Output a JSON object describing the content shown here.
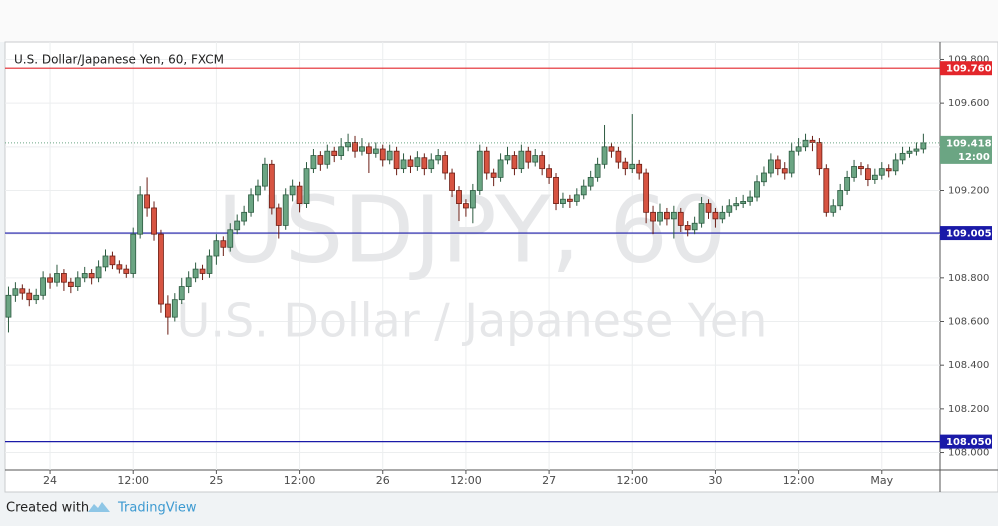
{
  "chart_data": {
    "type": "candlestick",
    "title": "U.S. Dollar/Japanese Yen, 60, FXCM",
    "watermark": [
      "USDJPY, 60",
      "U.S. Dollar / Japanese Yen"
    ],
    "up_color": "#6ba583",
    "down_color": "#d75442",
    "xlim": [
      -0.5,
      134.4
    ],
    "xticks": [
      {
        "value": 6,
        "label": "24"
      },
      {
        "value": 18,
        "label": "12:00"
      },
      {
        "value": 30,
        "label": "25"
      },
      {
        "value": 42,
        "label": "12:00"
      },
      {
        "value": 54,
        "label": "26"
      },
      {
        "value": 66,
        "label": "12:00"
      },
      {
        "value": 78,
        "label": "27"
      },
      {
        "value": 90,
        "label": "12:00"
      },
      {
        "value": 102,
        "label": "30"
      },
      {
        "value": 114,
        "label": "12:00"
      },
      {
        "value": 126,
        "label": "May"
      }
    ],
    "ylim": [
      107.92,
      109.88
    ],
    "yticks": [
      {
        "value": 108,
        "label": "108.000"
      },
      {
        "value": 108.2,
        "label": "108.200"
      },
      {
        "value": 108.4,
        "label": "108.400"
      },
      {
        "value": 108.6,
        "label": "108.600"
      },
      {
        "value": 108.8,
        "label": "108.800"
      },
      {
        "value": 109,
        "label": "109.000"
      },
      {
        "value": 109.2,
        "label": "109.200"
      },
      {
        "value": 109.4,
        "label": "109.400"
      },
      {
        "value": 109.6,
        "label": "109.600"
      },
      {
        "value": 109.8,
        "label": "109.800"
      }
    ],
    "grid": true,
    "levels": [
      {
        "value": 109.76,
        "label": "109.760",
        "color": "#e3262b"
      },
      {
        "value": 109.005,
        "label": "109.005",
        "color": "#1a1aa8"
      },
      {
        "value": 108.05,
        "label": "108.050",
        "color": "#1a1aa8"
      }
    ],
    "price_label_time": "12:00",
    "candles": [
      [
        108.62,
        108.76,
        108.55,
        108.72
      ],
      [
        108.72,
        108.78,
        108.69,
        108.75
      ],
      [
        108.75,
        108.77,
        108.7,
        108.73
      ],
      [
        108.73,
        108.75,
        108.67,
        108.7
      ],
      [
        108.7,
        108.75,
        108.68,
        108.72
      ],
      [
        108.72,
        108.83,
        108.7,
        108.8
      ],
      [
        108.8,
        108.82,
        108.75,
        108.78
      ],
      [
        108.78,
        108.86,
        108.76,
        108.82
      ],
      [
        108.82,
        108.84,
        108.74,
        108.78
      ],
      [
        108.78,
        108.8,
        108.73,
        108.76
      ],
      [
        108.76,
        108.83,
        108.74,
        108.8
      ],
      [
        108.8,
        108.85,
        108.78,
        108.82
      ],
      [
        108.82,
        108.84,
        108.77,
        108.8
      ],
      [
        108.8,
        108.88,
        108.78,
        108.85
      ],
      [
        108.85,
        108.93,
        108.83,
        108.9
      ],
      [
        108.9,
        108.92,
        108.84,
        108.86
      ],
      [
        108.86,
        108.88,
        108.82,
        108.84
      ],
      [
        108.84,
        108.86,
        108.8,
        108.82
      ],
      [
        108.82,
        109.03,
        108.8,
        109.0
      ],
      [
        109.0,
        109.22,
        108.98,
        109.18
      ],
      [
        109.18,
        109.26,
        109.08,
        109.12
      ],
      [
        109.12,
        109.15,
        108.97,
        109.0
      ],
      [
        109.0,
        109.02,
        108.64,
        108.68
      ],
      [
        108.68,
        108.72,
        108.54,
        108.62
      ],
      [
        108.62,
        108.73,
        108.6,
        108.7
      ],
      [
        108.7,
        108.8,
        108.68,
        108.76
      ],
      [
        108.76,
        108.83,
        108.73,
        108.8
      ],
      [
        108.8,
        108.87,
        108.78,
        108.84
      ],
      [
        108.84,
        108.86,
        108.79,
        108.82
      ],
      [
        108.82,
        108.93,
        108.8,
        108.9
      ],
      [
        108.9,
        109.0,
        108.86,
        108.97
      ],
      [
        108.97,
        108.99,
        108.9,
        108.94
      ],
      [
        108.94,
        109.05,
        108.92,
        109.02
      ],
      [
        109.02,
        109.09,
        109.0,
        109.06
      ],
      [
        109.06,
        109.13,
        109.04,
        109.1
      ],
      [
        109.1,
        109.21,
        109.08,
        109.18
      ],
      [
        109.18,
        109.25,
        109.15,
        109.22
      ],
      [
        109.22,
        109.35,
        109.2,
        109.32
      ],
      [
        109.32,
        109.34,
        109.09,
        109.12
      ],
      [
        109.12,
        109.14,
        108.98,
        109.04
      ],
      [
        109.04,
        109.21,
        109.02,
        109.18
      ],
      [
        109.18,
        109.25,
        109.15,
        109.22
      ],
      [
        109.22,
        109.24,
        109.1,
        109.14
      ],
      [
        109.14,
        109.33,
        109.12,
        109.3
      ],
      [
        109.3,
        109.39,
        109.28,
        109.36
      ],
      [
        109.36,
        109.38,
        109.29,
        109.32
      ],
      [
        109.32,
        109.41,
        109.3,
        109.38
      ],
      [
        109.38,
        109.4,
        109.33,
        109.36
      ],
      [
        109.36,
        109.44,
        109.34,
        109.4
      ],
      [
        109.4,
        109.46,
        109.38,
        109.42
      ],
      [
        109.42,
        109.45,
        109.35,
        109.38
      ],
      [
        109.38,
        109.44,
        109.36,
        109.4
      ],
      [
        109.4,
        109.42,
        109.28,
        109.37
      ],
      [
        109.37,
        109.42,
        109.35,
        109.39
      ],
      [
        109.39,
        109.41,
        109.31,
        109.34
      ],
      [
        109.34,
        109.41,
        109.32,
        109.38
      ],
      [
        109.38,
        109.4,
        109.27,
        109.3
      ],
      [
        109.3,
        109.37,
        109.28,
        109.34
      ],
      [
        109.34,
        109.36,
        109.28,
        109.31
      ],
      [
        109.31,
        109.38,
        109.29,
        109.35
      ],
      [
        109.35,
        109.37,
        109.27,
        109.3
      ],
      [
        109.3,
        109.37,
        109.28,
        109.34
      ],
      [
        109.34,
        109.39,
        109.32,
        109.36
      ],
      [
        109.36,
        109.38,
        109.25,
        109.28
      ],
      [
        109.28,
        109.3,
        109.17,
        109.2
      ],
      [
        109.2,
        109.22,
        109.06,
        109.14
      ],
      [
        109.14,
        109.16,
        109.08,
        109.12
      ],
      [
        109.12,
        109.23,
        109.05,
        109.2
      ],
      [
        109.2,
        109.41,
        109.18,
        109.38
      ],
      [
        109.38,
        109.4,
        109.25,
        109.28
      ],
      [
        109.28,
        109.3,
        109.22,
        109.26
      ],
      [
        109.26,
        109.37,
        109.24,
        109.34
      ],
      [
        109.34,
        109.4,
        109.32,
        109.36
      ],
      [
        109.36,
        109.38,
        109.27,
        109.3
      ],
      [
        109.3,
        109.41,
        109.28,
        109.38
      ],
      [
        109.38,
        109.4,
        109.3,
        109.33
      ],
      [
        109.33,
        109.39,
        109.31,
        109.36
      ],
      [
        109.36,
        109.38,
        109.27,
        109.3
      ],
      [
        109.3,
        109.32,
        109.23,
        109.26
      ],
      [
        109.26,
        109.28,
        109.11,
        109.14
      ],
      [
        109.14,
        109.19,
        109.12,
        109.16
      ],
      [
        109.16,
        109.18,
        109.12,
        109.15
      ],
      [
        109.15,
        109.21,
        109.13,
        109.18
      ],
      [
        109.18,
        109.25,
        109.16,
        109.22
      ],
      [
        109.22,
        109.29,
        109.2,
        109.26
      ],
      [
        109.26,
        109.35,
        109.24,
        109.32
      ],
      [
        109.32,
        109.5,
        109.3,
        109.4
      ],
      [
        109.4,
        109.42,
        109.35,
        109.38
      ],
      [
        109.38,
        109.4,
        109.3,
        109.33
      ],
      [
        109.33,
        109.35,
        109.27,
        109.3
      ],
      [
        109.3,
        109.55,
        109.28,
        109.32
      ],
      [
        109.32,
        109.34,
        109.25,
        109.28
      ],
      [
        109.28,
        109.3,
        109.05,
        109.1
      ],
      [
        109.1,
        109.13,
        109.0,
        109.06
      ],
      [
        109.06,
        109.14,
        109.04,
        109.1
      ],
      [
        109.1,
        109.12,
        109.04,
        109.07
      ],
      [
        109.07,
        109.13,
        108.98,
        109.1
      ],
      [
        109.1,
        109.12,
        109.01,
        109.04
      ],
      [
        109.04,
        109.06,
        108.99,
        109.02
      ],
      [
        109.02,
        109.08,
        109.0,
        109.05
      ],
      [
        109.05,
        109.17,
        109.03,
        109.14
      ],
      [
        109.14,
        109.16,
        109.07,
        109.1
      ],
      [
        109.1,
        109.12,
        109.03,
        109.07
      ],
      [
        109.07,
        109.13,
        109.05,
        109.1
      ],
      [
        109.1,
        109.16,
        109.08,
        109.13
      ],
      [
        109.13,
        109.17,
        109.11,
        109.14
      ],
      [
        109.14,
        109.18,
        109.12,
        109.15
      ],
      [
        109.15,
        109.2,
        109.13,
        109.17
      ],
      [
        109.17,
        109.27,
        109.15,
        109.24
      ],
      [
        109.24,
        109.31,
        109.22,
        109.28
      ],
      [
        109.28,
        109.37,
        109.26,
        109.34
      ],
      [
        109.34,
        109.36,
        109.27,
        109.3
      ],
      [
        109.3,
        109.33,
        109.25,
        109.28
      ],
      [
        109.28,
        109.42,
        109.26,
        109.38
      ],
      [
        109.38,
        109.44,
        109.36,
        109.4
      ],
      [
        109.4,
        109.46,
        109.38,
        109.43
      ],
      [
        109.43,
        109.45,
        109.38,
        109.42
      ],
      [
        109.42,
        109.44,
        109.27,
        109.3
      ],
      [
        109.3,
        109.32,
        109.08,
        109.1
      ],
      [
        109.1,
        109.16,
        109.08,
        109.13
      ],
      [
        109.13,
        109.23,
        109.11,
        109.2
      ],
      [
        109.2,
        109.29,
        109.18,
        109.26
      ],
      [
        109.26,
        109.34,
        109.24,
        109.31
      ],
      [
        109.31,
        109.33,
        109.27,
        109.3
      ],
      [
        109.3,
        109.32,
        109.22,
        109.25
      ],
      [
        109.25,
        109.3,
        109.23,
        109.27
      ],
      [
        109.27,
        109.33,
        109.25,
        109.3
      ],
      [
        109.3,
        109.32,
        109.26,
        109.29
      ],
      [
        109.29,
        109.37,
        109.27,
        109.34
      ],
      [
        109.34,
        109.4,
        109.32,
        109.37
      ],
      [
        109.37,
        109.4,
        109.35,
        109.38
      ],
      [
        109.38,
        109.42,
        109.36,
        109.39
      ],
      [
        109.39,
        109.46,
        109.37,
        109.418
      ]
    ]
  },
  "footer": {
    "text": "Created with",
    "brand": "TradingView"
  }
}
